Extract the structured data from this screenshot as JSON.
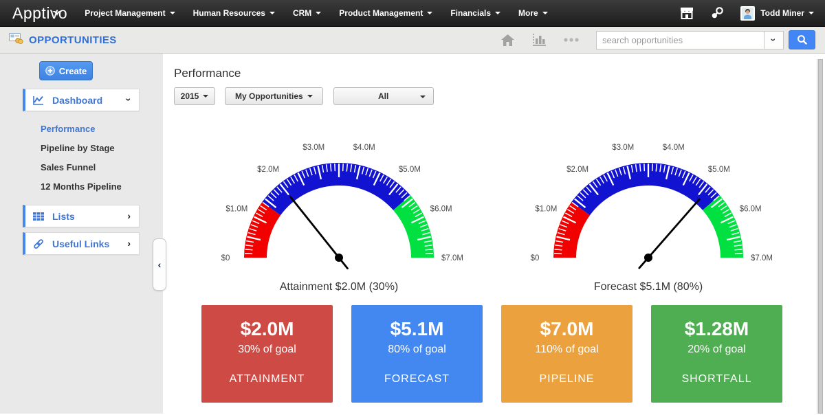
{
  "colors": {
    "accent_blue": "#4285f4",
    "link_blue": "#2e6fd9",
    "sidebar_item_blue": "#4076d4",
    "gauge_red": "#f20000",
    "gauge_blue": "#1212d1",
    "gauge_green": "#00e040"
  },
  "topnav": {
    "logo": "Apptivo",
    "menus": [
      {
        "label": "Project Management"
      },
      {
        "label": "Human Resources"
      },
      {
        "label": "CRM"
      },
      {
        "label": "Product Management"
      },
      {
        "label": "Financials"
      },
      {
        "label": "More"
      }
    ],
    "user": {
      "name": "Todd Miner"
    }
  },
  "appbar": {
    "title": "OPPORTUNITIES",
    "search_placeholder": "search opportunities"
  },
  "sidebar": {
    "create_label": "Create",
    "dashboard_label": "Dashboard",
    "dashboard_items": [
      "Performance",
      "Pipeline by Stage",
      "Sales Funnel",
      "12 Months Pipeline"
    ],
    "active_item": "Performance",
    "lists_label": "Lists",
    "useful_links_label": "Useful Links"
  },
  "main": {
    "title": "Performance",
    "filters": [
      {
        "label": "2015"
      },
      {
        "label": "My Opportunities"
      },
      {
        "label": "All"
      }
    ]
  },
  "chart_data": [
    {
      "type": "gauge",
      "metric": "Attainment",
      "title": "Attainment $2.0M (30%)",
      "value": 2000000,
      "value_label": "$2.0M",
      "percent_of_goal": "30%",
      "min": 0,
      "max": 7000000,
      "minor_tick_step": 100000,
      "major_tick_step": 500000,
      "label_step": 1000000,
      "tick_labels": [
        "$0",
        "$1.0M",
        "$2.0M",
        "$3.0M",
        "$4.0M",
        "$5.0M",
        "$6.0M",
        "$7.0M"
      ],
      "zones": [
        {
          "from": 0,
          "to": 1400000,
          "color": "#f20000"
        },
        {
          "from": 1400000,
          "to": 5400000,
          "color": "#1212d1"
        },
        {
          "from": 5400000,
          "to": 7000000,
          "color": "#00e040"
        }
      ],
      "needle_color": "#000000"
    },
    {
      "type": "gauge",
      "metric": "Forecast",
      "title": "Forecast $5.1M (80%)",
      "value": 5100000,
      "value_label": "$5.1M",
      "percent_of_goal": "80%",
      "min": 0,
      "max": 7000000,
      "minor_tick_step": 100000,
      "major_tick_step": 500000,
      "label_step": 1000000,
      "tick_labels": [
        "$0",
        "$1.0M",
        "$2.0M",
        "$3.0M",
        "$4.0M",
        "$5.0M",
        "$6.0M",
        "$7.0M"
      ],
      "zones": [
        {
          "from": 0,
          "to": 1400000,
          "color": "#f20000"
        },
        {
          "from": 1400000,
          "to": 5400000,
          "color": "#1212d1"
        },
        {
          "from": 5400000,
          "to": 7000000,
          "color": "#00e040"
        }
      ],
      "needle_color": "#000000"
    }
  ],
  "cards": [
    {
      "value": "$2.0M",
      "subtitle": "30% of goal",
      "label": "ATTAINMENT",
      "color": "#cd4a45"
    },
    {
      "value": "$5.1M",
      "subtitle": "80% of goal",
      "label": "FORECAST",
      "color": "#4387f0"
    },
    {
      "value": "$7.0M",
      "subtitle": "110% of goal",
      "label": "PIPELINE",
      "color": "#eba23e"
    },
    {
      "value": "$1.28M",
      "subtitle": "20% of goal",
      "label": "SHORTFALL",
      "color": "#4fae52"
    }
  ]
}
